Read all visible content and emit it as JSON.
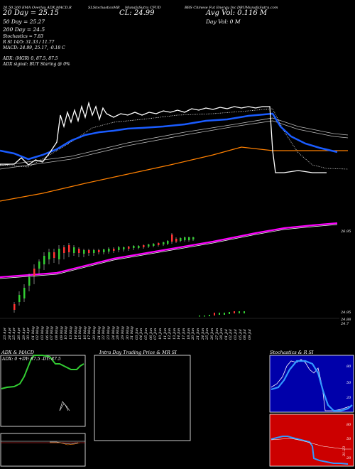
{
  "header": {
    "ema_line": "20,50,200 EMA Overlay ADX,MACD,R",
    "sma_20": "20 Day = 25.15",
    "sma_50": "50 Day = 25.27",
    "sma_200": "200 Day = 24.5",
    "stochastics": "SLStochasticsMR",
    "ticker_link": "MunafaSutra CFUD",
    "close": "CL: 24.99",
    "company": "BBS Chinese Fut Energy Inc DBUMunafaSutra.com",
    "avg_vol": "Avg Vol: 0.116  M",
    "day_vol": "Day Vol: 0   M",
    "stoch_label": "Stochastics = 7.83",
    "rsi": "R            SI 14/5: 31.33 / 11.77",
    "macd": "MACD: 24.99, 25.17, -0.18   C",
    "adx": "ADX:                    (MGR) 0, 87.5,  87.5",
    "adx_signal": "ADX  signal:                    BUY Staring @ 0%"
  },
  "price_axis": {
    "upper": "26.95",
    "lower1": "24.95",
    "lower2": "24.88",
    "lower3": "24.7"
  },
  "date_labels": [
    "23 Apr",
    "24 Apr",
    "25 Apr",
    "26 Apr",
    "29 Apr",
    "30 Apr",
    "01 May",
    "02 May",
    "03 May",
    "06 May",
    "07 May",
    "08 May",
    "09 May",
    "10 May",
    "13 May",
    "14 May",
    "15 May",
    "16 May",
    "17 May",
    "20 May",
    "21 May",
    "22 May",
    "23 May",
    "24 May",
    "28 May",
    "29 May",
    "30 May",
    "31 May",
    "03 Jun",
    "04 Jun",
    "05 Jun",
    "06 Jun",
    "07 Jun",
    "10 Jun",
    "11 Jun",
    "12 Jun",
    "13 Jun",
    "14 Jun",
    "17 Jun",
    "18 Jun",
    "20 Jun",
    "21 Jun",
    "24 Jun",
    "25 Jun",
    "26 Jun",
    "27 Jun",
    "28 Jun",
    "01 Jul",
    "02 Jul",
    "03 Jul",
    "05 Jul",
    "08 Jul",
    "09 Jul"
  ],
  "panels": {
    "adx_title": "ADX  & MACD",
    "adx_readout": "ADX: 0   +DY: 87.5  -DY: 87.5",
    "intraday_title": "Intra  Day Trading Price  & MR                SI",
    "stoch_title": "Stochastics & R                SI",
    "stoch_ticks": [
      "80",
      "50",
      "20"
    ],
    "rsi_ticks": [
      "80",
      "50",
      "20"
    ],
    "rsi_readout": "31.33"
  },
  "colors": {
    "background": "#000000",
    "price": "#ffffff",
    "ema20": "#1a5cff",
    "ema200": "#ff8000",
    "envelope": "#ff00ff",
    "stoch_bg": "#0000aa",
    "rsi_bg": "#cc0000",
    "adx_line": "#33cc33"
  }
}
